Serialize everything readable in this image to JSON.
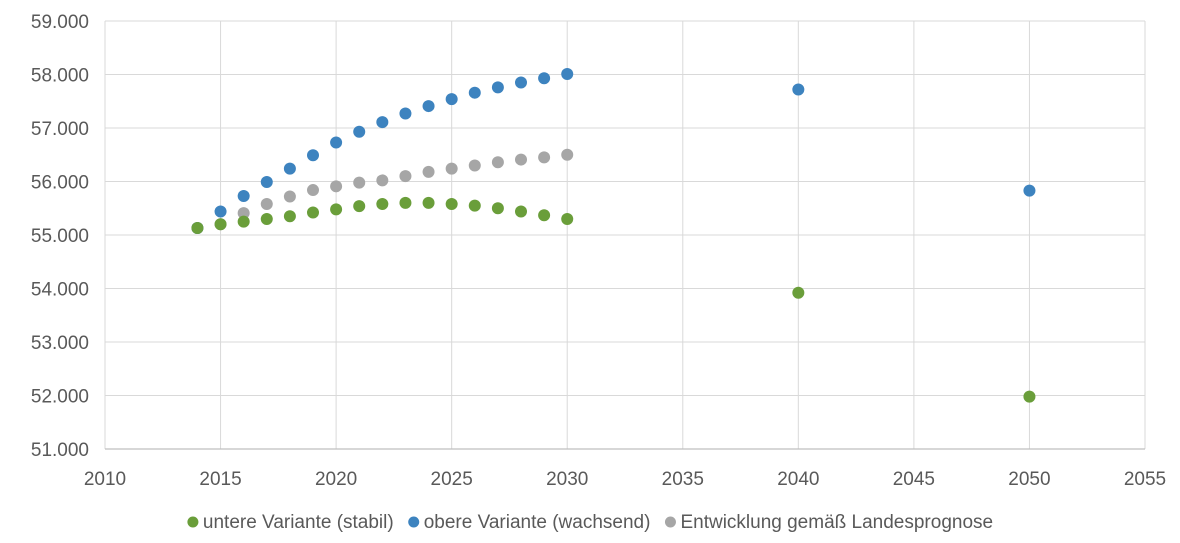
{
  "chart_data": {
    "type": "scatter",
    "xlim": [
      2010,
      2055
    ],
    "ylim": [
      51000,
      59000
    ],
    "x_ticks": [
      "2010",
      "2015",
      "2020",
      "2025",
      "2030",
      "2035",
      "2040",
      "2045",
      "2050",
      "2055"
    ],
    "y_ticks": [
      "51.000",
      "52.000",
      "53.000",
      "54.000",
      "55.000",
      "56.000",
      "57.000",
      "58.000",
      "59.000"
    ],
    "grid": true,
    "legend_position": "bottom",
    "series": [
      {
        "name": "untere Variante (stabil)",
        "color": "#6a9e3a",
        "points": [
          [
            2014,
            55130
          ],
          [
            2015,
            55200
          ],
          [
            2016,
            55250
          ],
          [
            2017,
            55300
          ],
          [
            2018,
            55350
          ],
          [
            2019,
            55420
          ],
          [
            2020,
            55480
          ],
          [
            2021,
            55540
          ],
          [
            2022,
            55580
          ],
          [
            2023,
            55600
          ],
          [
            2024,
            55600
          ],
          [
            2025,
            55580
          ],
          [
            2026,
            55550
          ],
          [
            2027,
            55500
          ],
          [
            2028,
            55440
          ],
          [
            2029,
            55370
          ],
          [
            2030,
            55300
          ],
          [
            2040,
            53920
          ],
          [
            2050,
            51980
          ]
        ]
      },
      {
        "name": "obere Variante (wachsend)",
        "color": "#3d83bf",
        "points": [
          [
            2014,
            55130
          ],
          [
            2015,
            55440
          ],
          [
            2016,
            55730
          ],
          [
            2017,
            55990
          ],
          [
            2018,
            56240
          ],
          [
            2019,
            56490
          ],
          [
            2020,
            56730
          ],
          [
            2021,
            56930
          ],
          [
            2022,
            57110
          ],
          [
            2023,
            57270
          ],
          [
            2024,
            57410
          ],
          [
            2025,
            57540
          ],
          [
            2026,
            57660
          ],
          [
            2027,
            57760
          ],
          [
            2028,
            57850
          ],
          [
            2029,
            57930
          ],
          [
            2030,
            58010
          ],
          [
            2040,
            57720
          ],
          [
            2050,
            55830
          ]
        ]
      },
      {
        "name": "Entwicklung gemäß Landesprognose",
        "color": "#a6a6a6",
        "points": [
          [
            2014,
            55130
          ],
          [
            2015,
            55200
          ],
          [
            2016,
            55410
          ],
          [
            2017,
            55580
          ],
          [
            2018,
            55720
          ],
          [
            2019,
            55840
          ],
          [
            2020,
            55910
          ],
          [
            2021,
            55980
          ],
          [
            2022,
            56020
          ],
          [
            2023,
            56100
          ],
          [
            2024,
            56180
          ],
          [
            2025,
            56240
          ],
          [
            2026,
            56300
          ],
          [
            2027,
            56360
          ],
          [
            2028,
            56410
          ],
          [
            2029,
            56450
          ],
          [
            2030,
            56500
          ]
        ]
      }
    ]
  }
}
